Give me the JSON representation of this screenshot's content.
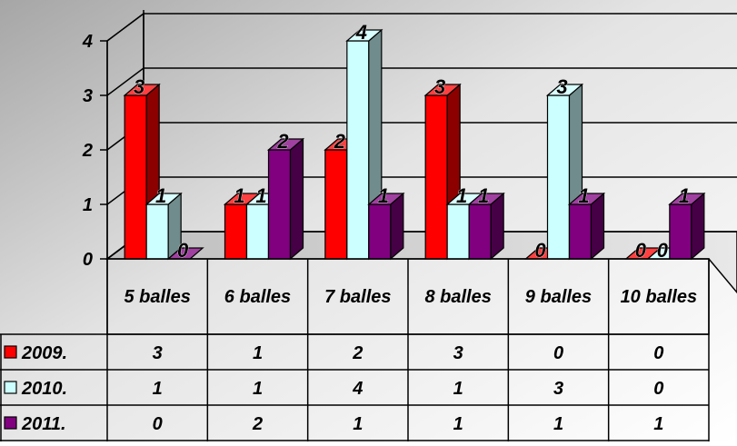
{
  "chart_data": {
    "type": "bar",
    "categories": [
      "5 balles",
      "6 balles",
      "7 balles",
      "8 balles",
      "9 balles",
      "10 balles"
    ],
    "series": [
      {
        "name": "2009.",
        "values": [
          3,
          1,
          2,
          3,
          0,
          0
        ],
        "color": "#ff0000"
      },
      {
        "name": "2010.",
        "values": [
          1,
          1,
          4,
          1,
          3,
          0
        ],
        "color": "#ccffff"
      },
      {
        "name": "2011.",
        "values": [
          0,
          2,
          1,
          1,
          1,
          1
        ],
        "color": "#800080"
      }
    ],
    "y_ticks": [
      "0",
      "1",
      "2",
      "3",
      "4"
    ],
    "ylim": [
      0,
      4
    ],
    "grid": true,
    "data_labels": true,
    "legend": "data-table"
  }
}
